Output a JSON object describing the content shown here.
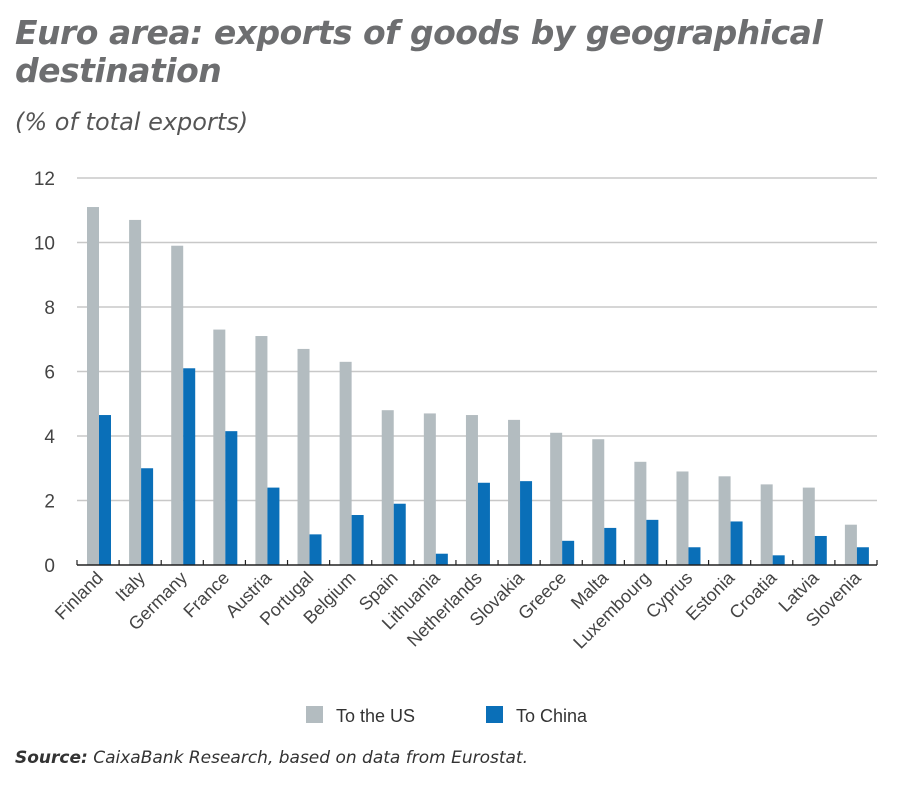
{
  "chart_data": {
    "type": "bar",
    "title": "Euro area: exports of goods by geographical destination",
    "subtitle": "(% of total exports)",
    "xlabel": "",
    "ylabel": "",
    "ylim": [
      0,
      12
    ],
    "yticks": [
      "0",
      "2",
      "4",
      "6",
      "8",
      "10",
      "12"
    ],
    "grid": true,
    "legend_position": "bottom",
    "categories": [
      "Finland",
      "Italy",
      "Germany",
      "France",
      "Austria",
      "Portugal",
      "Belgium",
      "Spain",
      "Lithuania",
      "Netherlands",
      "Slovakia",
      "Greece",
      "Malta",
      "Luxembourg",
      "Cyprus",
      "Estonia",
      "Croatia",
      "Latvia",
      "Slovenia"
    ],
    "series": [
      {
        "name": "To the US",
        "color": "#b3bcc0",
        "values": [
          11.1,
          10.7,
          9.9,
          7.3,
          7.1,
          6.7,
          6.3,
          4.8,
          4.7,
          4.65,
          4.5,
          4.1,
          3.9,
          3.2,
          2.9,
          2.75,
          2.5,
          2.4,
          1.25
        ]
      },
      {
        "name": "To China",
        "color": "#0a6fb8",
        "values": [
          4.65,
          3.0,
          6.1,
          4.15,
          2.4,
          0.95,
          1.55,
          1.9,
          0.35,
          2.55,
          2.6,
          0.75,
          1.15,
          1.4,
          0.55,
          1.35,
          0.3,
          0.9,
          0.55
        ]
      }
    ]
  },
  "source": {
    "label": "Source:",
    "text": " CaixaBank Research, based on data from Eurostat."
  }
}
